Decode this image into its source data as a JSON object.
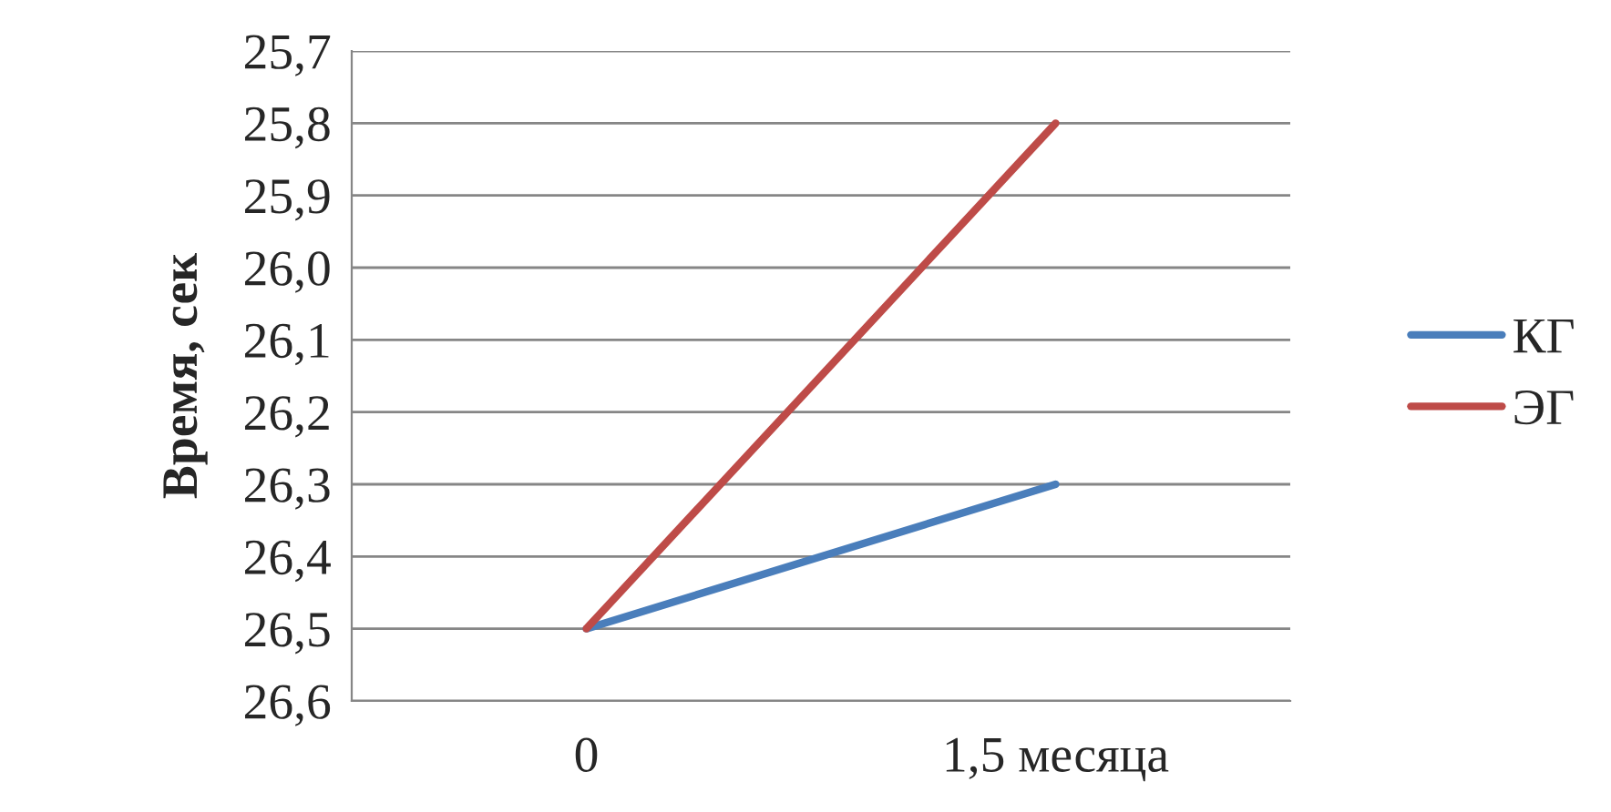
{
  "chart_data": {
    "type": "line",
    "ylabel": "Время, сек",
    "categories": [
      "0",
      "1,5 месяца"
    ],
    "series": [
      {
        "name": "КГ",
        "color": "#4a7ebb",
        "values": [
          26.5,
          26.3
        ]
      },
      {
        "name": "ЭГ",
        "color": "#be4b48",
        "values": [
          26.5,
          25.8
        ]
      }
    ],
    "ylim": [
      26.6,
      25.7
    ],
    "yticks": [
      {
        "value": 25.7,
        "label": "25,7"
      },
      {
        "value": 25.8,
        "label": "25,8"
      },
      {
        "value": 25.9,
        "label": "25,9"
      },
      {
        "value": 26.0,
        "label": "26,0"
      },
      {
        "value": 26.1,
        "label": "26,1"
      },
      {
        "value": 26.2,
        "label": "26,2"
      },
      {
        "value": 26.3,
        "label": "26,3"
      },
      {
        "value": 26.4,
        "label": "26,4"
      },
      {
        "value": 26.5,
        "label": "26,5"
      },
      {
        "value": 26.6,
        "label": "26,6"
      }
    ],
    "grid": "y",
    "legend": "right",
    "marker": "none",
    "line_style": "solid"
  }
}
